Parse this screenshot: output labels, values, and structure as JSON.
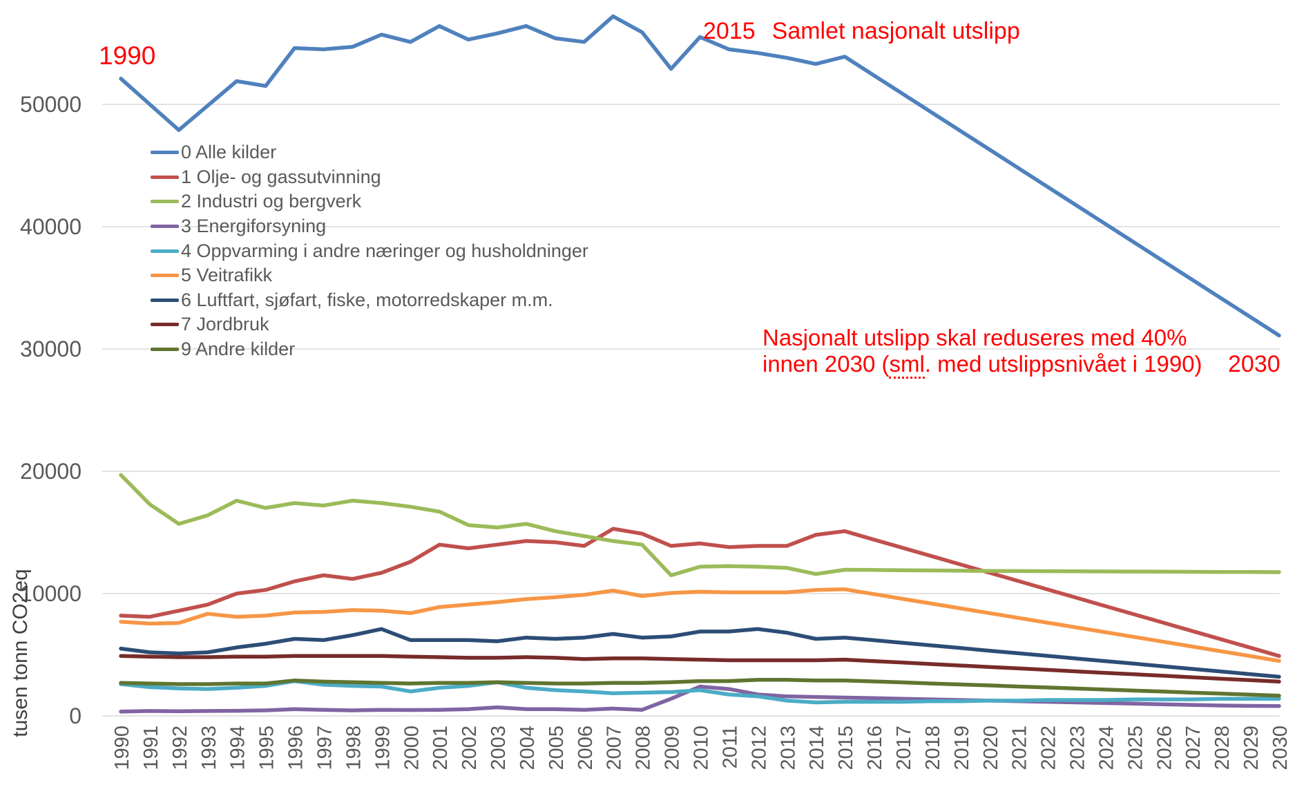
{
  "y_axis_title": "tusen tonn CO2eq",
  "annotations": {
    "start_year": "1990",
    "peak_year": "2015",
    "peak_label": "Samlet nasjonalt utslipp",
    "goal_line1": "Nasjonalt utslipp skal reduseres med 40%",
    "goal_line2_pre": "innen 2030 (",
    "goal_line2_misspelled": "sml",
    "goal_line2_post": ". med utslippsnivået i 1990)",
    "end_year": "2030",
    "annotation_color": "#FF0000"
  },
  "chart_data": {
    "type": "line",
    "title": "",
    "xlabel": "",
    "ylabel": "tusen tonn CO2eq",
    "grid": "horizontal",
    "gridline_color": "#D9D9D9",
    "axis_text_color": "#595959",
    "legend_position": "upper-left-inside",
    "x_label_rotation": -90,
    "ylim": [
      0,
      57500
    ],
    "yticks": [
      0,
      10000,
      20000,
      30000,
      40000,
      50000
    ],
    "x": [
      1990,
      1991,
      1992,
      1993,
      1994,
      1995,
      1996,
      1997,
      1998,
      1999,
      2000,
      2001,
      2002,
      2003,
      2004,
      2005,
      2006,
      2007,
      2008,
      2009,
      2010,
      2011,
      2012,
      2013,
      2014,
      2015,
      2016,
      2017,
      2018,
      2019,
      2020,
      2021,
      2022,
      2023,
      2024,
      2025,
      2026,
      2027,
      2028,
      2029,
      2030
    ],
    "series": [
      {
        "id": "alle-kilder",
        "label": "0 Alle kilder",
        "color": "#4F81BD",
        "values": [
          52100,
          50000,
          47900,
          49900,
          51900,
          51500,
          54600,
          54500,
          54700,
          55700,
          55100,
          56400,
          55300,
          55800,
          56400,
          55400,
          55100,
          57200,
          55900,
          52900,
          55500,
          54500,
          54200,
          53800,
          53300,
          53900,
          52380,
          50860,
          49340,
          47820,
          46300,
          44780,
          43260,
          41740,
          40220,
          38700,
          37180,
          35660,
          34140,
          32620,
          31100
        ]
      },
      {
        "id": "olje-og-gassutvinning",
        "label": "1 Olje- og gassutvinning",
        "color": "#C0504D",
        "values": [
          8200,
          8100,
          8600,
          9100,
          10000,
          10300,
          11000,
          11500,
          11200,
          11700,
          12600,
          14000,
          13700,
          14000,
          14300,
          14200,
          13900,
          15300,
          14900,
          13900,
          14100,
          13800,
          13900,
          13900,
          14800,
          15100,
          14420,
          13740,
          13060,
          12380,
          11700,
          11020,
          10340,
          9660,
          8980,
          8300,
          7620,
          6940,
          6260,
          5580,
          4900
        ]
      },
      {
        "id": "industri-og-bergverk",
        "label": "2 Industri og bergverk",
        "color": "#9BBB59",
        "values": [
          19700,
          17300,
          15700,
          16400,
          17600,
          17000,
          17400,
          17200,
          17600,
          17400,
          17100,
          16700,
          15600,
          15400,
          15700,
          15100,
          14700,
          14300,
          14000,
          11500,
          12200,
          12250,
          12200,
          12100,
          11600,
          11950,
          11930,
          11910,
          11890,
          11870,
          11850,
          11840,
          11830,
          11820,
          11810,
          11800,
          11790,
          11780,
          11770,
          11760,
          11750
        ]
      },
      {
        "id": "energiforsyning",
        "label": "3 Energiforsyning",
        "color": "#8064A2",
        "values": [
          350,
          400,
          380,
          400,
          420,
          450,
          550,
          500,
          450,
          500,
          480,
          500,
          550,
          700,
          550,
          550,
          500,
          600,
          500,
          1400,
          2400,
          2200,
          1750,
          1600,
          1550,
          1500,
          1450,
          1400,
          1350,
          1300,
          1250,
          1200,
          1150,
          1100,
          1050,
          1000,
          950,
          900,
          850,
          820,
          800
        ]
      },
      {
        "id": "oppvarming",
        "label": "4 Oppvarming i andre næringer og husholdninger",
        "color": "#4BACC6",
        "values": [
          2600,
          2350,
          2250,
          2200,
          2300,
          2450,
          2850,
          2550,
          2450,
          2400,
          2000,
          2300,
          2450,
          2750,
          2300,
          2100,
          2000,
          1850,
          1900,
          1950,
          2100,
          1750,
          1600,
          1250,
          1100,
          1150,
          1150,
          1150,
          1200,
          1200,
          1250,
          1250,
          1300,
          1300,
          1300,
          1350,
          1350,
          1350,
          1400,
          1400,
          1400
        ]
      },
      {
        "id": "veitrafikk",
        "label": "5 Veitrafikk",
        "color": "#F79646",
        "values": [
          7700,
          7550,
          7600,
          8350,
          8100,
          8200,
          8450,
          8500,
          8650,
          8600,
          8400,
          8900,
          9100,
          9300,
          9550,
          9700,
          9900,
          10250,
          9800,
          10050,
          10150,
          10100,
          10100,
          10100,
          10300,
          10350,
          9960,
          9570,
          9180,
          8790,
          8400,
          8010,
          7620,
          7230,
          6840,
          6450,
          6060,
          5670,
          5280,
          4890,
          4500
        ]
      },
      {
        "id": "luftfart-sjofart",
        "label": "6 Luftfart, sjøfart, fiske, motorredskaper m.m.",
        "color": "#2C4D75",
        "values": [
          5500,
          5200,
          5100,
          5200,
          5600,
          5900,
          6300,
          6200,
          6600,
          7100,
          6200,
          6200,
          6200,
          6100,
          6400,
          6300,
          6400,
          6700,
          6400,
          6500,
          6900,
          6900,
          7100,
          6800,
          6300,
          6400,
          6190,
          5970,
          5760,
          5550,
          5330,
          5120,
          4910,
          4690,
          4480,
          4270,
          4050,
          3840,
          3630,
          3410,
          3200
        ]
      },
      {
        "id": "jordbruk",
        "label": "7 Jordbruk",
        "color": "#772C2A",
        "values": [
          4900,
          4850,
          4800,
          4800,
          4850,
          4850,
          4900,
          4900,
          4900,
          4900,
          4850,
          4800,
          4750,
          4750,
          4800,
          4750,
          4650,
          4700,
          4700,
          4650,
          4600,
          4550,
          4550,
          4550,
          4550,
          4600,
          4480,
          4360,
          4240,
          4120,
          4000,
          3880,
          3760,
          3640,
          3520,
          3400,
          3280,
          3160,
          3040,
          2920,
          2800
        ]
      },
      {
        "id": "andre-kilder",
        "label": "9 Andre kilder",
        "color": "#5F7530",
        "values": [
          2700,
          2650,
          2600,
          2600,
          2650,
          2650,
          2900,
          2800,
          2750,
          2700,
          2650,
          2700,
          2700,
          2750,
          2700,
          2650,
          2650,
          2700,
          2700,
          2750,
          2850,
          2850,
          2950,
          2950,
          2900,
          2900,
          2820,
          2740,
          2650,
          2570,
          2490,
          2400,
          2320,
          2240,
          2150,
          2070,
          1990,
          1900,
          1820,
          1740,
          1650
        ]
      }
    ]
  }
}
